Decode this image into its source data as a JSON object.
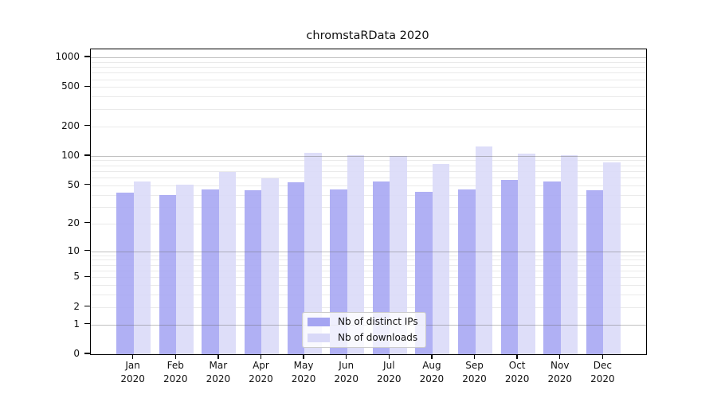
{
  "chart_data": {
    "type": "bar",
    "title": "chromstaRData 2020",
    "x_categories": [
      "Jan",
      "Feb",
      "Mar",
      "Apr",
      "May",
      "Jun",
      "Jul",
      "Aug",
      "Sep",
      "Oct",
      "Nov",
      "Dec"
    ],
    "x_year": "2020",
    "y_scale": "log10(1+value)",
    "y_ticks": [
      0,
      1,
      2,
      5,
      10,
      20,
      50,
      100,
      200,
      500,
      1000
    ],
    "y_gridlines_major": [
      1,
      10,
      100,
      1000
    ],
    "y_gridlines_minor": [
      2,
      3,
      4,
      5,
      6,
      7,
      8,
      9,
      20,
      30,
      40,
      50,
      60,
      70,
      80,
      90,
      200,
      300,
      400,
      500,
      600,
      700,
      800,
      900
    ],
    "ylim": [
      0,
      1200
    ],
    "grid": true,
    "legend_position": "inside-bottom-center",
    "series": [
      {
        "name": "Nb of distinct IPs",
        "color": "#a5a5f2",
        "values": [
          42,
          40,
          45,
          44,
          54,
          45,
          55,
          43,
          45,
          57,
          55,
          44
        ]
      },
      {
        "name": "Nb of downloads",
        "color": "#d9d9f8",
        "values": [
          55,
          51,
          68,
          59,
          107,
          102,
          100,
          83,
          125,
          105,
          102,
          86
        ]
      }
    ],
    "colors": {
      "frame": "#000000",
      "major_grid": "#c3c3c3",
      "minor_grid": "#eaeaea",
      "text": "#111111"
    }
  }
}
